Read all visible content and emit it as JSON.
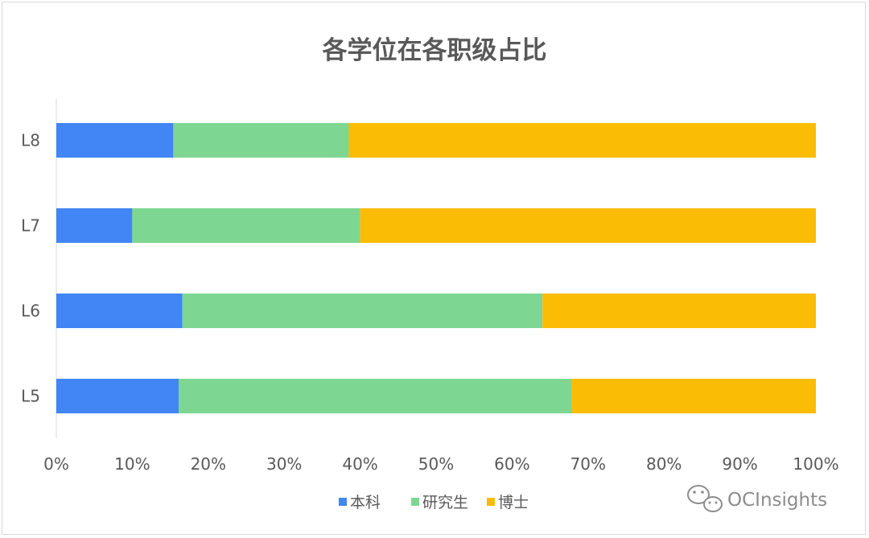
{
  "chart_data": {
    "type": "bar",
    "orientation": "horizontal",
    "stacked": "percent",
    "title": "各学位在各职级占比",
    "categories": [
      "L8",
      "L7",
      "L6",
      "L5"
    ],
    "series": [
      {
        "name": "本科",
        "values": [
          15.4,
          10.0,
          16.6,
          16.1
        ],
        "color": "#4285f4"
      },
      {
        "name": "研究生",
        "values": [
          23.1,
          30.0,
          47.4,
          51.7
        ],
        "color": "#7dd792"
      },
      {
        "name": "博士",
        "values": [
          61.5,
          60.0,
          36.0,
          32.2
        ],
        "color": "#fbbc05"
      }
    ],
    "xticks": [
      "0%",
      "10%",
      "20%",
      "30%",
      "40%",
      "50%",
      "60%",
      "70%",
      "80%",
      "90%",
      "100%"
    ],
    "xlim": [
      0,
      100
    ],
    "grid": false,
    "legend": "bottom"
  },
  "watermark": {
    "text": "OCInsights",
    "icon": "wechat-icon"
  }
}
